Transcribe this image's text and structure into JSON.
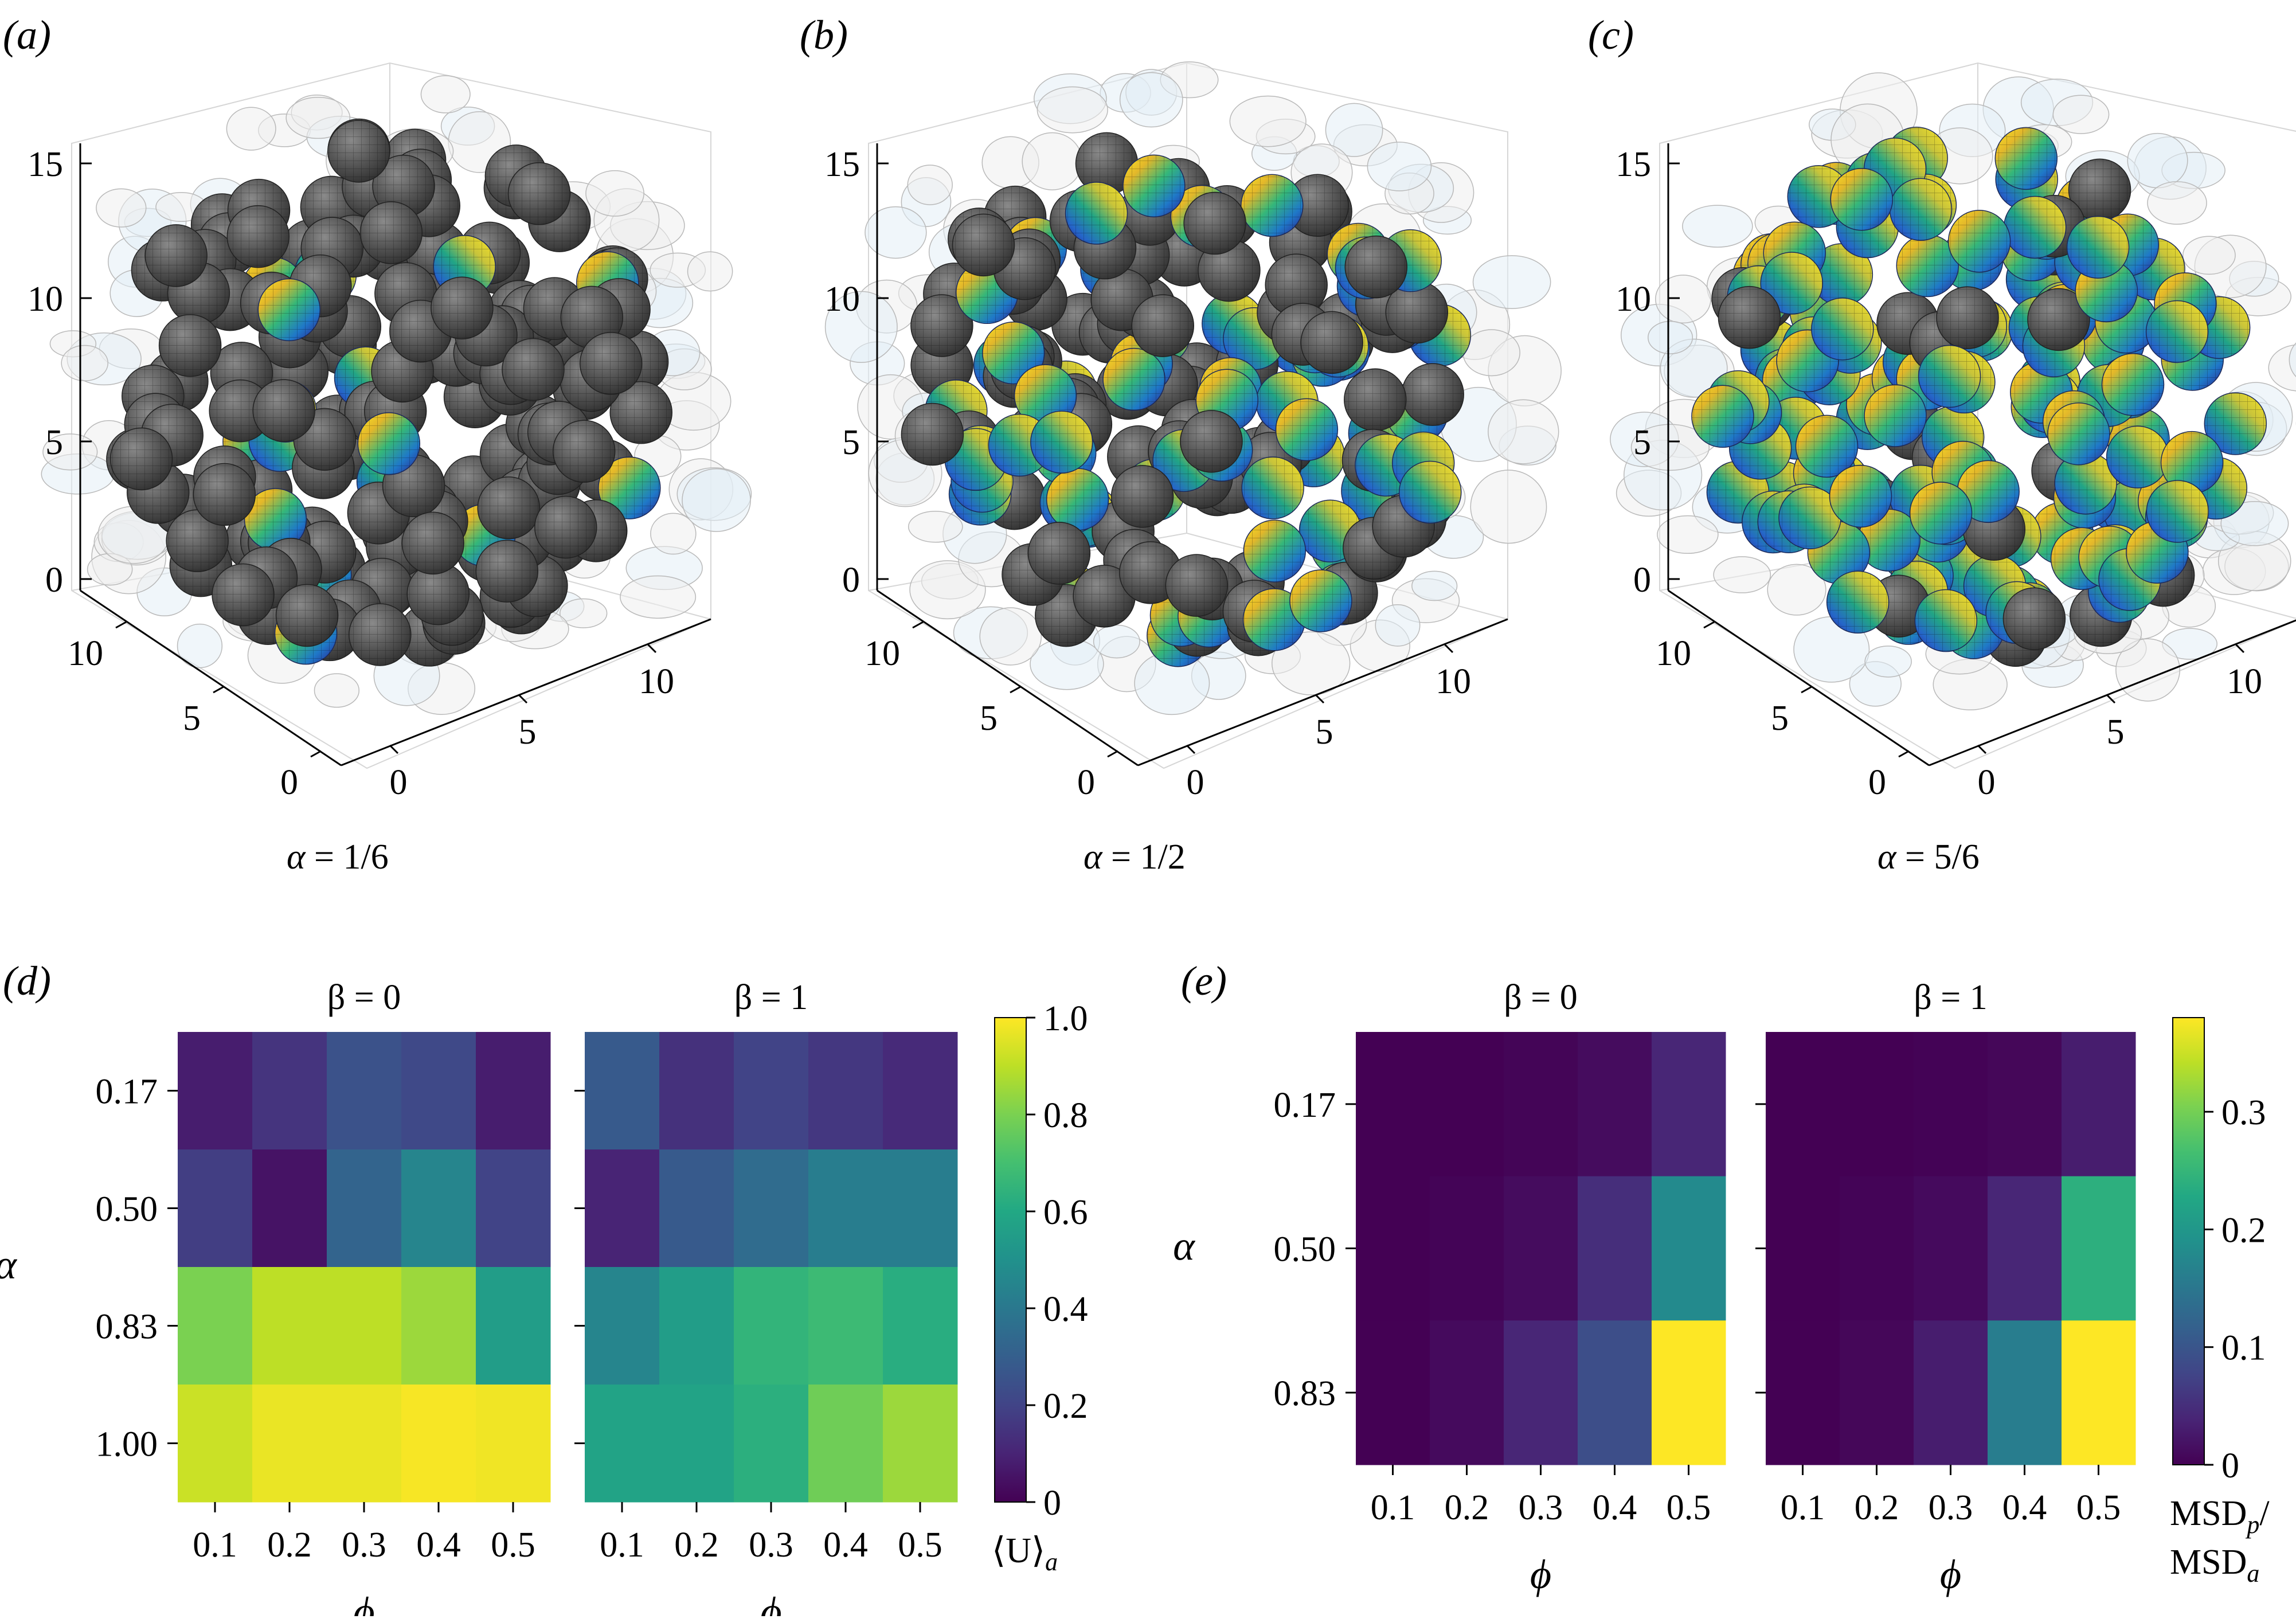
{
  "panels_3d": [
    {
      "letter": "a",
      "caption_symbol": "α",
      "caption_value": "= 1/6",
      "z_ticks": [
        "0",
        "5",
        "10",
        "15"
      ],
      "y_ticks": [
        "0",
        "5",
        "10"
      ],
      "x_ticks": [
        "0",
        "5",
        "10"
      ],
      "active_count": 18,
      "passive_count": 150,
      "ghost_count": 70
    },
    {
      "letter": "b",
      "caption_symbol": "α",
      "caption_value": "= 1/2",
      "z_ticks": [
        "0",
        "5",
        "10",
        "15"
      ],
      "y_ticks": [
        "0",
        "5",
        "10"
      ],
      "x_ticks": [
        "0",
        "5",
        "10"
      ],
      "active_count": 70,
      "passive_count": 90,
      "ghost_count": 70
    },
    {
      "letter": "c",
      "caption_symbol": "α",
      "caption_value": "= 5/6",
      "z_ticks": [
        "0",
        "5",
        "10",
        "15"
      ],
      "y_ticks": [
        "0",
        "5",
        "10"
      ],
      "x_ticks": [
        "0",
        "5",
        "10"
      ],
      "active_count": 150,
      "passive_count": 22,
      "ghost_count": 70
    }
  ],
  "chart_data": [
    {
      "type": "heatmap",
      "panel": "d",
      "title": "β = 0",
      "xlabel": "ϕ",
      "ylabel": "α",
      "x_categories": [
        "0.1",
        "0.2",
        "0.3",
        "0.4",
        "0.5"
      ],
      "y_categories": [
        "0.17",
        "0.50",
        "0.83",
        "1.00"
      ],
      "values": [
        [
          0.08,
          0.15,
          0.25,
          0.22,
          0.08
        ],
        [
          0.18,
          0.05,
          0.32,
          0.45,
          0.2
        ],
        [
          0.8,
          0.9,
          0.9,
          0.85,
          0.55
        ],
        [
          0.92,
          0.97,
          0.97,
          0.99,
          0.98
        ]
      ],
      "colorscale": "viridis",
      "vmin": 0,
      "vmax": 1.0
    },
    {
      "type": "heatmap",
      "panel": "d",
      "title": "β = 1",
      "xlabel": "ϕ",
      "ylabel": "",
      "x_categories": [
        "0.1",
        "0.2",
        "0.3",
        "0.4",
        "0.5"
      ],
      "y_categories": [
        "0.17",
        "0.50",
        "0.83",
        "1.00"
      ],
      "values": [
        [
          0.28,
          0.14,
          0.2,
          0.16,
          0.12
        ],
        [
          0.1,
          0.28,
          0.35,
          0.42,
          0.42
        ],
        [
          0.45,
          0.55,
          0.65,
          0.68,
          0.62
        ],
        [
          0.58,
          0.58,
          0.63,
          0.78,
          0.85
        ]
      ],
      "colorscale": "viridis",
      "vmin": 0,
      "vmax": 1.0
    },
    {
      "type": "heatmap",
      "panel": "e",
      "title": "β = 0",
      "xlabel": "ϕ",
      "ylabel": "α",
      "x_categories": [
        "0.1",
        "0.2",
        "0.3",
        "0.4",
        "0.5"
      ],
      "y_categories": [
        "0.17",
        "0.50",
        "0.83"
      ],
      "values": [
        [
          0.0,
          0.0,
          0.004,
          0.012,
          0.04
        ],
        [
          0.0,
          0.003,
          0.012,
          0.05,
          0.18
        ],
        [
          0.0,
          0.01,
          0.04,
          0.09,
          0.38
        ]
      ],
      "colorscale": "viridis",
      "vmin": 0,
      "vmax": 0.38
    },
    {
      "type": "heatmap",
      "panel": "e",
      "title": "β = 1",
      "xlabel": "ϕ",
      "ylabel": "",
      "x_categories": [
        "0.1",
        "0.2",
        "0.3",
        "0.4",
        "0.5"
      ],
      "y_categories": [
        "0.17",
        "0.50",
        "0.83"
      ],
      "values": [
        [
          0.0,
          0.0,
          0.002,
          0.006,
          0.03
        ],
        [
          0.0,
          0.003,
          0.01,
          0.04,
          0.24
        ],
        [
          0.0,
          0.006,
          0.03,
          0.16,
          0.38
        ]
      ],
      "colorscale": "viridis",
      "vmin": 0,
      "vmax": 0.38
    }
  ],
  "colorbars": [
    {
      "panel": "d",
      "ticks": [
        "0",
        "0.2",
        "0.4",
        "0.6",
        "0.8",
        "1.0"
      ],
      "tick_values": [
        0,
        0.2,
        0.4,
        0.6,
        0.8,
        1.0
      ],
      "vmin": 0,
      "vmax": 1.0,
      "label_line1": "⟨U⟩",
      "label_sub": "a",
      "label_line2": ""
    },
    {
      "panel": "e",
      "ticks": [
        "0",
        "0.1",
        "0.2",
        "0.3"
      ],
      "tick_values": [
        0,
        0.1,
        0.2,
        0.3
      ],
      "vmin": 0,
      "vmax": 0.38,
      "label_line1": "MSD",
      "label_sub": "p",
      "label_tail": "/",
      "label_line2": "MSD",
      "label_sub2": "a"
    }
  ],
  "panel_letters_bottom": [
    "d",
    "e"
  ]
}
